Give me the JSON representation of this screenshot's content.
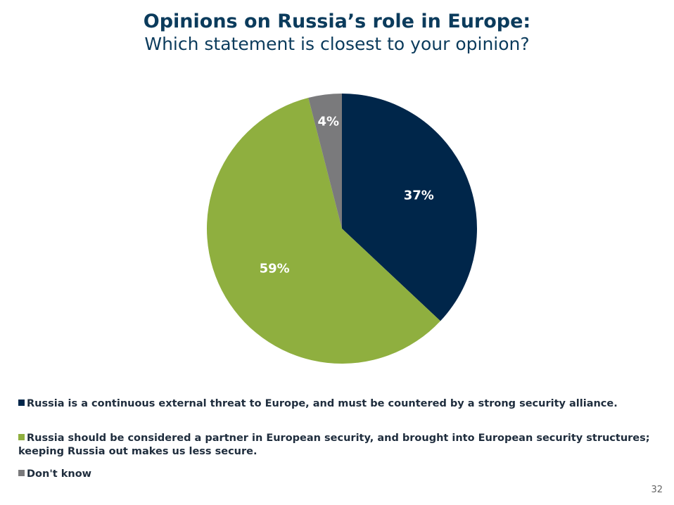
{
  "chart_data": {
    "type": "pie",
    "title": "Opinions on Russia’s role in Europe:",
    "subtitle": "Which statement is closest to your opinion?",
    "slices": [
      {
        "label": "Russia is a continuous external threat to Europe, and must be countered by a strong security alliance.",
        "value": 37,
        "display": "37%",
        "color": "#00264a"
      },
      {
        "label": "Russia should be considered a partner in European security, and brought into European security structures; keeping Russia out makes us less secure.",
        "value": 59,
        "display": "59%",
        "color": "#8faf3f"
      },
      {
        "label": "Don't know",
        "value": 4,
        "display": "4%",
        "color": "#7a7a7c"
      }
    ],
    "legend_position": "bottom-left"
  },
  "page_number": "32"
}
